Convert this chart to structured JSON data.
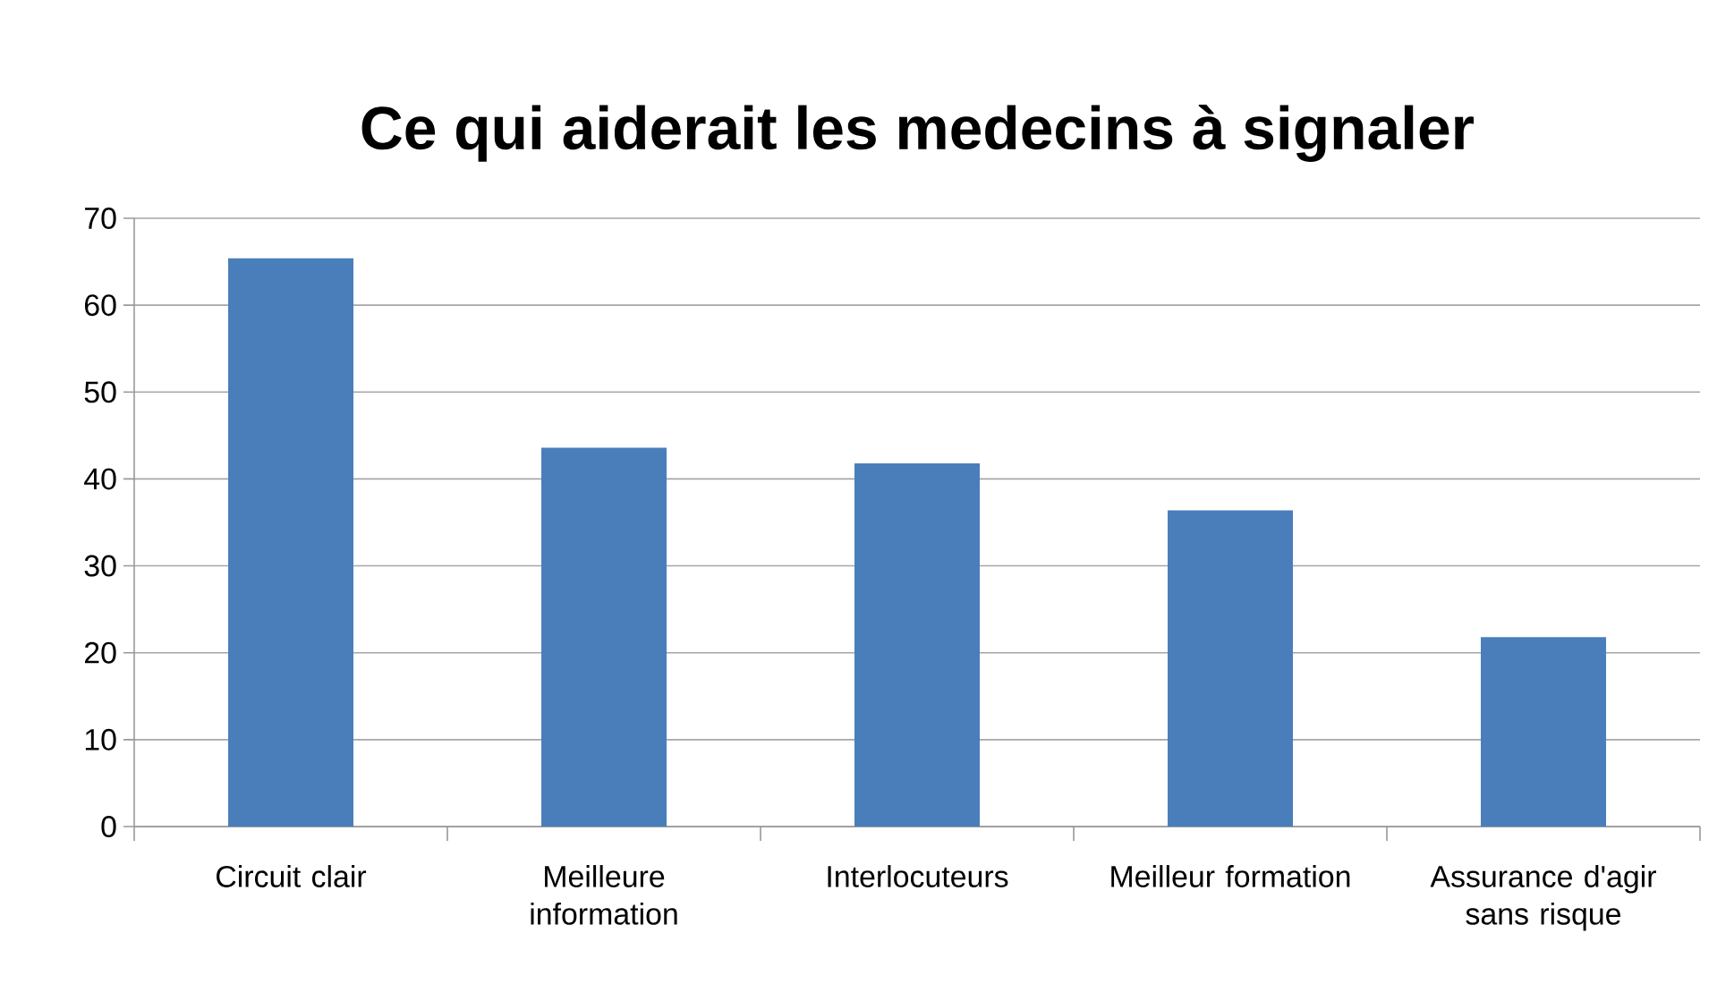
{
  "chart_data": {
    "type": "bar",
    "title": "Ce qui aiderait les medecins à signaler",
    "categories": [
      "Circuit clair",
      "Meilleure information",
      "Interlocuteurs",
      "Meilleur formation",
      "Assurance d'agir sans risque"
    ],
    "values": [
      65.4,
      43.6,
      41.8,
      36.4,
      21.8
    ],
    "color": "#4a7ebb",
    "ylim": [
      0,
      70
    ],
    "yticks": [
      0,
      10,
      20,
      30,
      40,
      50,
      60,
      70
    ],
    "grid": "y"
  }
}
